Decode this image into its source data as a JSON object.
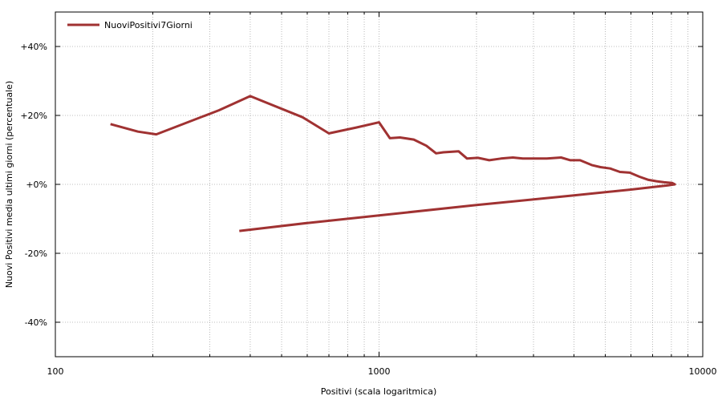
{
  "chart_data": {
    "type": "line",
    "title": "",
    "xlabel": "Positivi (scala logaritmica)",
    "ylabel": "Nuovi Positivi media ultimi giorni (percentuale)",
    "xscale": "log",
    "xlim": [
      100,
      10000
    ],
    "ylim": [
      -50,
      50
    ],
    "grid": true,
    "legend_position": "top-left",
    "x_ticks": [
      100,
      1000,
      10000
    ],
    "x_tick_labels": [
      "100",
      "1000",
      "10000"
    ],
    "y_ticks": [
      40,
      20,
      0,
      -20,
      -40
    ],
    "y_tick_labels": [
      "+40%",
      "+20%",
      "+0%",
      "-20%",
      "-40%"
    ],
    "series": [
      {
        "name": "NuoviPositivi7Giorni",
        "color": "#a03232",
        "x": [
          148,
          180,
          205,
          320,
          400,
          580,
          700,
          850,
          1000,
          1080,
          1160,
          1280,
          1400,
          1500,
          1580,
          1760,
          1870,
          2020,
          2190,
          2380,
          2590,
          2780,
          3000,
          3300,
          3650,
          3900,
          4180,
          4540,
          4830,
          5180,
          5550,
          5950,
          6380,
          6800,
          7200,
          7600,
          8050,
          8200,
          7800,
          6000,
          4000,
          2000,
          1000,
          600,
          370
        ],
        "y": [
          17.5,
          15.3,
          14.5,
          21.5,
          25.6,
          19.5,
          14.8,
          16.5,
          18.0,
          13.4,
          13.6,
          13.0,
          11.2,
          9.0,
          9.3,
          9.6,
          7.5,
          7.7,
          7.0,
          7.5,
          7.8,
          7.5,
          7.5,
          7.5,
          7.8,
          7.0,
          7.0,
          5.6,
          5.0,
          4.6,
          3.6,
          3.4,
          2.2,
          1.3,
          0.9,
          0.6,
          0.4,
          0.0,
          -0.3,
          -1.5,
          -3.2,
          -6.0,
          -9.0,
          -11.2,
          -13.5
        ]
      }
    ]
  }
}
